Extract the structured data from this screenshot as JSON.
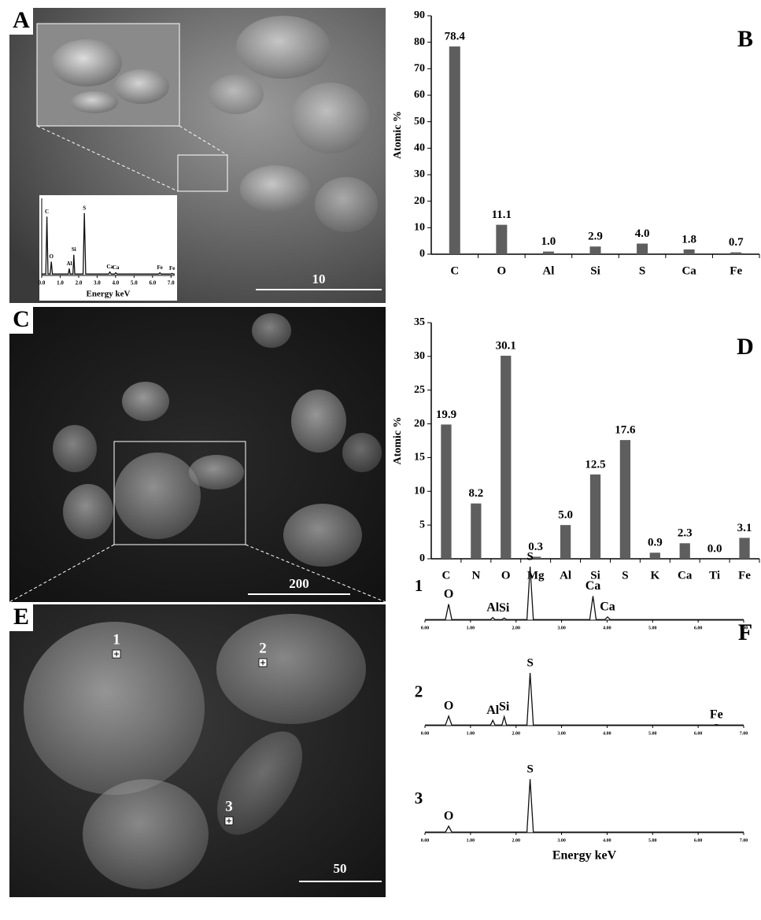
{
  "panels": {
    "A": {
      "label": "A",
      "scale_bar": "10"
    },
    "B": {
      "label": "B"
    },
    "C": {
      "label": "C",
      "scale_bar": "200"
    },
    "D": {
      "label": "D"
    },
    "E": {
      "label": "E",
      "scale_bar": "50",
      "spots": [
        "1",
        "2",
        "3"
      ]
    },
    "F": {
      "label": "F"
    }
  },
  "chart_data": [
    {
      "type": "bar",
      "ylabel": "Atomic %",
      "categories": [
        "C",
        "O",
        "Al",
        "Si",
        "S",
        "Ca",
        "Fe"
      ],
      "values": [
        78.4,
        11.1,
        1.0,
        2.9,
        4.0,
        1.8,
        0.7
      ],
      "value_labels": [
        "78.4",
        "11.1",
        "1.0",
        "2.9",
        "4.0",
        "1.8",
        "0.7"
      ],
      "color": "#5e5e5e",
      "ylim": [
        0,
        90
      ],
      "yticks": [
        0,
        10,
        20,
        30,
        40,
        50,
        60,
        70,
        80,
        90
      ]
    },
    {
      "type": "bar",
      "ylabel": "Atomic %",
      "categories": [
        "C",
        "N",
        "O",
        "Mg",
        "Al",
        "Si",
        "S",
        "K",
        "Ca",
        "Ti",
        "Fe"
      ],
      "values": [
        19.9,
        8.2,
        30.1,
        0.3,
        5.0,
        12.5,
        17.6,
        0.9,
        2.3,
        0.0,
        3.1
      ],
      "value_labels": [
        "19.9",
        "8.2",
        "30.1",
        "0.3",
        "5.0",
        "12.5",
        "17.6",
        "0.9",
        "2.3",
        "0.0",
        "3.1"
      ],
      "color": "#5e5e5e",
      "ylim": [
        0,
        35
      ],
      "yticks": [
        0,
        5,
        10,
        15,
        20,
        25,
        30,
        35
      ]
    },
    {
      "type": "line",
      "color": "#111111",
      "x": [
        0,
        0.45,
        0.52,
        0.59,
        1.44,
        1.49,
        1.54,
        1.69,
        1.74,
        1.79,
        2.24,
        2.31,
        2.38,
        3.62,
        3.69,
        3.76,
        3.95,
        4.01,
        4.07,
        7
      ],
      "series": [
        {
          "name": "1",
          "values": [
            1,
            1,
            30,
            1,
            1,
            5,
            1,
            1,
            4,
            1,
            1,
            100,
            1,
            1,
            45,
            1,
            1,
            6,
            1,
            1
          ]
        }
      ],
      "annotations": [
        {
          "text": "O",
          "x": 0.52
        },
        {
          "text": "Al",
          "x": 1.49
        },
        {
          "text": "Si",
          "x": 1.74
        },
        {
          "text": "S",
          "x": 2.31
        },
        {
          "text": "Ca",
          "x": 3.69
        },
        {
          "text": "Ca",
          "x": 4.01
        }
      ],
      "xlim": [
        0,
        7
      ],
      "ylim": [
        0,
        100
      ],
      "xticks": [
        {
          "value": 0,
          "label": "0.00"
        },
        {
          "value": 1,
          "label": "1.00"
        },
        {
          "value": 2,
          "label": "2.00"
        },
        {
          "value": 3,
          "label": "3.00"
        },
        {
          "value": 4,
          "label": "4.00"
        },
        {
          "value": 5,
          "label": "5.00"
        },
        {
          "value": 6,
          "label": "6.00"
        },
        {
          "value": 7,
          "label": "7.00"
        }
      ]
    },
    {
      "type": "line",
      "color": "#111111",
      "x": [
        0,
        0.45,
        0.52,
        0.59,
        1.44,
        1.49,
        1.54,
        1.69,
        1.74,
        1.79,
        2.24,
        2.31,
        2.38,
        6.34,
        6.4,
        6.46,
        7
      ],
      "series": [
        {
          "name": "2",
          "values": [
            1,
            1,
            18,
            1,
            1,
            10,
            1,
            1,
            17,
            1,
            1,
            100,
            1,
            1,
            2,
            1,
            1
          ]
        }
      ],
      "annotations": [
        {
          "text": "O",
          "x": 0.52
        },
        {
          "text": "Al",
          "x": 1.49
        },
        {
          "text": "Si",
          "x": 1.74
        },
        {
          "text": "S",
          "x": 2.31
        },
        {
          "text": "Fe",
          "x": 6.4
        }
      ],
      "xlim": [
        0,
        7
      ],
      "ylim": [
        0,
        100
      ],
      "xticks": [
        {
          "value": 0,
          "label": "0.00"
        },
        {
          "value": 1,
          "label": "1.00"
        },
        {
          "value": 2,
          "label": "2.00"
        },
        {
          "value": 3,
          "label": "3.00"
        },
        {
          "value": 4,
          "label": "4.00"
        },
        {
          "value": 5,
          "label": "5.00"
        },
        {
          "value": 6,
          "label": "6.00"
        },
        {
          "value": 7,
          "label": "7.00"
        }
      ]
    },
    {
      "type": "line",
      "color": "#111111",
      "xlabel": "Energy keV",
      "x": [
        0,
        0.45,
        0.52,
        0.59,
        2.24,
        2.31,
        2.38,
        7
      ],
      "series": [
        {
          "name": "3",
          "values": [
            1,
            1,
            12,
            1,
            1,
            100,
            1,
            1
          ]
        }
      ],
      "annotations": [
        {
          "text": "O",
          "x": 0.52
        },
        {
          "text": "S",
          "x": 2.31
        }
      ],
      "xlim": [
        0,
        7
      ],
      "ylim": [
        0,
        100
      ],
      "xticks": [
        {
          "value": 0,
          "label": "0.00"
        },
        {
          "value": 1,
          "label": "1.00"
        },
        {
          "value": 2,
          "label": "2.00"
        },
        {
          "value": 3,
          "label": "3.00"
        },
        {
          "value": 4,
          "label": "4.00"
        },
        {
          "value": 5,
          "label": "5.00"
        },
        {
          "value": 6,
          "label": "6.00"
        },
        {
          "value": 7,
          "label": "7.00"
        }
      ]
    },
    {
      "type": "line",
      "color": "#111111",
      "xlabel": "Energy keV",
      "x": [
        0,
        0.22,
        0.28,
        0.34,
        0.46,
        0.52,
        0.58,
        1.44,
        1.49,
        1.54,
        1.69,
        1.74,
        1.79,
        2.24,
        2.31,
        2.38,
        3.62,
        3.69,
        3.76,
        3.95,
        4.01,
        4.07,
        6.34,
        6.4,
        6.46,
        7.0,
        7.06,
        7.12,
        7.2
      ],
      "series": [
        {
          "name": null,
          "values": [
            2,
            2,
            85,
            2,
            2,
            20,
            2,
            2,
            10,
            2,
            2,
            30,
            2,
            2,
            90,
            2,
            2,
            5,
            2,
            2,
            4,
            2,
            2,
            4,
            2,
            2,
            3,
            2,
            2
          ]
        }
      ],
      "annotations": [
        {
          "text": "C",
          "x": 0.28
        },
        {
          "text": "O",
          "x": 0.52
        },
        {
          "text": "Al",
          "x": 1.49
        },
        {
          "text": "Si",
          "x": 1.74
        },
        {
          "text": "S",
          "x": 2.31
        },
        {
          "text": "Ca",
          "x": 3.69
        },
        {
          "text": "Ca",
          "x": 4.01
        },
        {
          "text": "Fe",
          "x": 6.4
        },
        {
          "text": "Fe",
          "x": 7.06
        }
      ],
      "xlim": [
        0,
        7.2
      ],
      "ylim": [
        0,
        100
      ],
      "xticks": [
        {
          "value": 0,
          "label": "0.0"
        },
        {
          "value": 1,
          "label": "1.0"
        },
        {
          "value": 2,
          "label": "2.0"
        },
        {
          "value": 3,
          "label": "3.0"
        },
        {
          "value": 4,
          "label": "4.0"
        },
        {
          "value": 5,
          "label": "5.0"
        },
        {
          "value": 6,
          "label": "6.0"
        },
        {
          "value": 7,
          "label": "7.0"
        }
      ]
    }
  ]
}
